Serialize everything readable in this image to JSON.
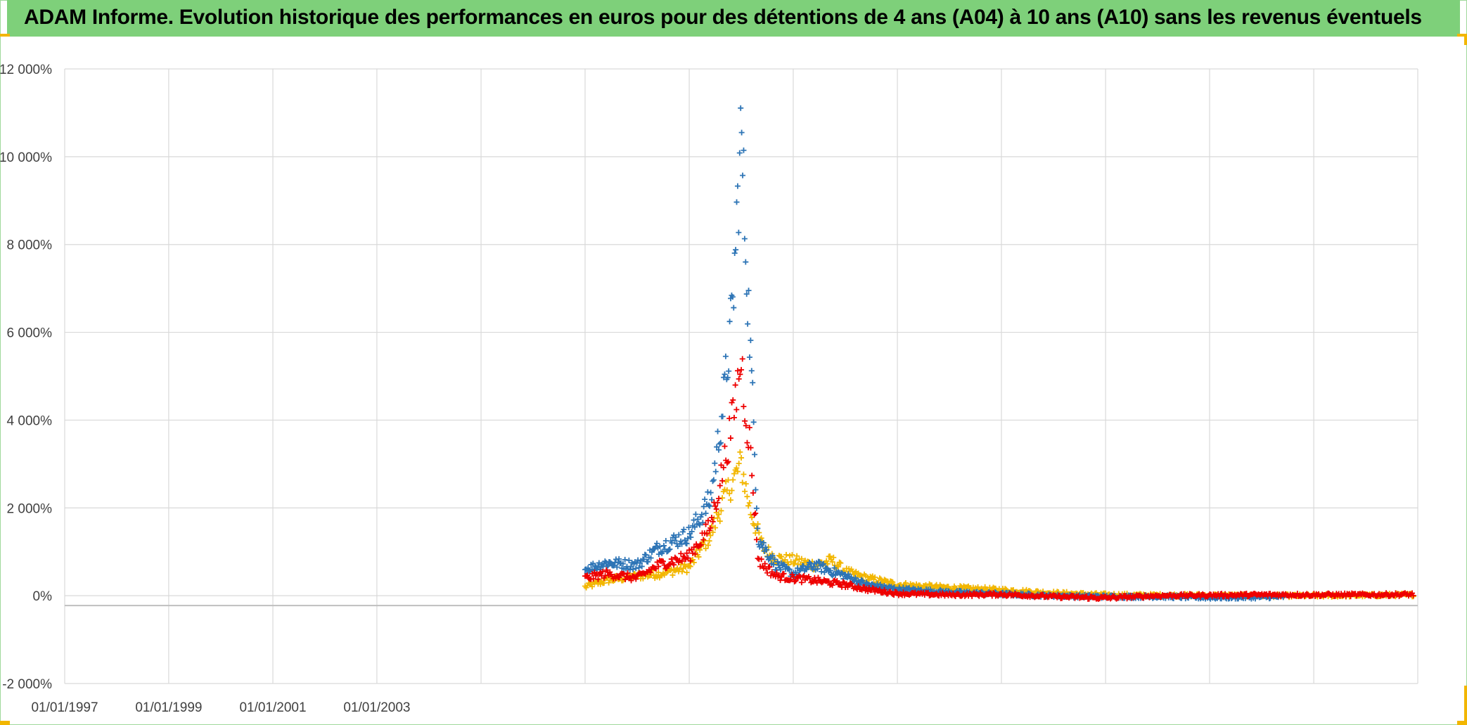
{
  "title": "ADAM Informe. Evolution historique des performances en euros pour des détentions de 4 ans (A04) à 10 ans (A10) sans les revenus éventuels",
  "colors": {
    "title_bg": "#7ed07a",
    "corner_accent": "#f2b600",
    "grid": "#d9d9d9"
  },
  "chart_data": {
    "type": "scatter",
    "title": "ADAM Informe. Evolution historique des performances en euros pour des détentions de 4 ans (A04) à 10 ans (A10) sans les revenus éventuels",
    "xlabel": "",
    "ylabel": "",
    "x_axis": {
      "type": "date",
      "range": [
        "1997-01-01",
        "2023-01-01"
      ],
      "tick_labels": [
        "01/01/1997",
        "01/01/1999",
        "01/01/2001",
        "01/01/2003"
      ]
    },
    "y_axis": {
      "range": [
        -2000,
        12000
      ],
      "tick_values": [
        -2000,
        0,
        2000,
        4000,
        6000,
        8000,
        10000,
        12000
      ],
      "tick_labels": [
        "-2 000%",
        "0%",
        "2 000%",
        "4 000%",
        "6 000%",
        "8 000%",
        "10 000%",
        "12 000%"
      ],
      "unit": "%"
    },
    "grid": true,
    "legend": "none",
    "marker": "+",
    "series": [
      {
        "color": "#f2b600",
        "points": [
          [
            "2007-01-01",
            200
          ],
          [
            "2007-06-01",
            350
          ],
          [
            "2008-01-01",
            450
          ],
          [
            "2008-06-01",
            500
          ],
          [
            "2009-01-01",
            650
          ],
          [
            "2009-06-01",
            1400
          ],
          [
            "2009-09-01",
            2200
          ],
          [
            "2010-01-01",
            3000
          ],
          [
            "2010-03-01",
            2000
          ],
          [
            "2010-06-01",
            1100
          ],
          [
            "2010-09-01",
            850
          ],
          [
            "2011-01-01",
            800
          ],
          [
            "2011-06-01",
            700
          ],
          [
            "2011-10-01",
            800
          ],
          [
            "2012-01-01",
            550
          ],
          [
            "2012-06-01",
            400
          ],
          [
            "2013-01-01",
            250
          ],
          [
            "2014-01-01",
            180
          ],
          [
            "2015-01-01",
            130
          ],
          [
            "2016-01-01",
            60
          ],
          [
            "2017-01-01",
            20
          ],
          [
            "2018-01-01",
            10
          ],
          [
            "2019-01-01",
            10
          ],
          [
            "2020-01-01",
            0
          ],
          [
            "2021-01-01",
            0
          ],
          [
            "2022-01-01",
            10
          ],
          [
            "2022-12-01",
            20
          ]
        ]
      },
      {
        "color": "#2e75b6",
        "points": [
          [
            "2007-01-01",
            600
          ],
          [
            "2007-06-01",
            750
          ],
          [
            "2008-01-01",
            700
          ],
          [
            "2008-06-01",
            1100
          ],
          [
            "2009-01-01",
            1400
          ],
          [
            "2009-06-01",
            2200
          ],
          [
            "2009-09-01",
            4500
          ],
          [
            "2009-11-01",
            6500
          ],
          [
            "2010-01-01",
            10600
          ],
          [
            "2010-02-01",
            8000
          ],
          [
            "2010-03-01",
            6000
          ],
          [
            "2010-05-01",
            1300
          ],
          [
            "2010-09-01",
            700
          ],
          [
            "2011-01-01",
            500
          ],
          [
            "2011-06-01",
            700
          ],
          [
            "2012-01-01",
            450
          ],
          [
            "2012-06-01",
            250
          ],
          [
            "2013-01-01",
            150
          ],
          [
            "2014-01-01",
            80
          ],
          [
            "2015-01-01",
            40
          ],
          [
            "2016-01-01",
            0
          ],
          [
            "2017-01-01",
            -20
          ],
          [
            "2018-01-01",
            -20
          ],
          [
            "2019-01-01",
            -40
          ],
          [
            "2020-01-01",
            -30
          ],
          [
            "2020-06-01",
            -20
          ]
        ]
      },
      {
        "color": "#ee0000",
        "points": [
          [
            "2007-01-01",
            400
          ],
          [
            "2007-06-01",
            500
          ],
          [
            "2008-01-01",
            400
          ],
          [
            "2008-06-01",
            700
          ],
          [
            "2009-01-01",
            900
          ],
          [
            "2009-06-01",
            1600
          ],
          [
            "2009-09-01",
            3000
          ],
          [
            "2009-11-01",
            4000
          ],
          [
            "2010-01-01",
            5400
          ],
          [
            "2010-02-01",
            4200
          ],
          [
            "2010-03-01",
            3500
          ],
          [
            "2010-05-01",
            800
          ],
          [
            "2010-09-01",
            450
          ],
          [
            "2011-01-01",
            400
          ],
          [
            "2011-06-01",
            350
          ],
          [
            "2012-01-01",
            250
          ],
          [
            "2012-06-01",
            150
          ],
          [
            "2013-01-01",
            50
          ],
          [
            "2014-01-01",
            20
          ],
          [
            "2015-01-01",
            30
          ],
          [
            "2016-01-01",
            -20
          ],
          [
            "2017-01-01",
            -50
          ],
          [
            "2018-01-01",
            0
          ],
          [
            "2019-01-01",
            10
          ],
          [
            "2020-01-01",
            20
          ],
          [
            "2021-01-01",
            20
          ],
          [
            "2022-01-01",
            20
          ],
          [
            "2022-12-01",
            30
          ]
        ]
      }
    ]
  }
}
